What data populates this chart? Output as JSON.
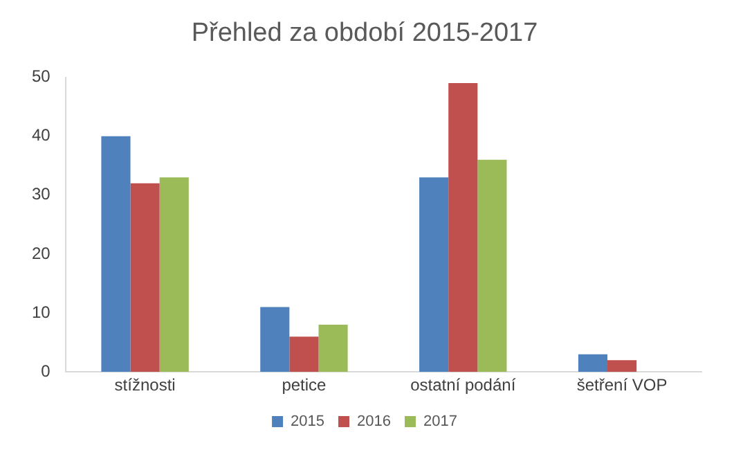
{
  "chart_data": {
    "type": "bar",
    "title": "Přehled za období 2015-2017",
    "categories": [
      "stížnosti",
      "petice",
      "ostatní podání",
      "šetření VOP"
    ],
    "series": [
      {
        "name": "2015",
        "color": "#4f81bd",
        "values": [
          40,
          11,
          33,
          3
        ]
      },
      {
        "name": "2016",
        "color": "#c0504d",
        "values": [
          32,
          6,
          49,
          2
        ]
      },
      {
        "name": "2017",
        "color": "#9bbb59",
        "values": [
          33,
          8,
          36,
          0
        ]
      }
    ],
    "ylim": [
      0,
      50
    ],
    "yticks": [
      0,
      10,
      20,
      30,
      40,
      50
    ],
    "grid": false,
    "legend": "bottom"
  }
}
